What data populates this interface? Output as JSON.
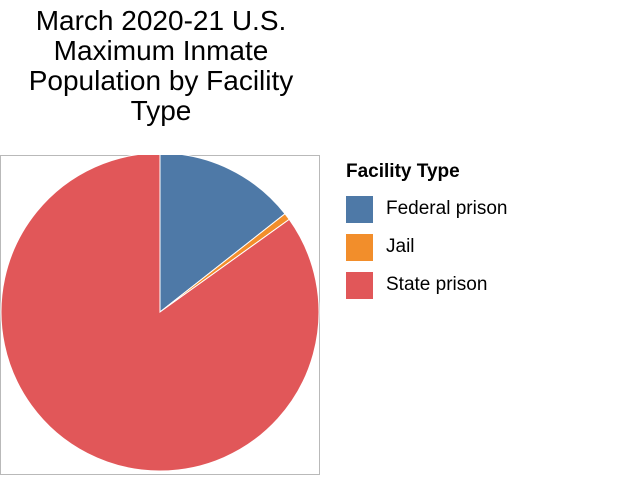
{
  "chart_data": {
    "type": "pie",
    "title": "March 2020-21 U.S. Maximum Inmate Population by Facility Type",
    "title_lines": [
      "March 2020-21 U.S.",
      "Maximum Inmate",
      "Population by Facility",
      "Type"
    ],
    "legend_title": "Facility Type",
    "legend_position": "right",
    "categories": [
      "Federal prison",
      "Jail",
      "State prison"
    ],
    "values": [
      14.4,
      0.7,
      84.9
    ],
    "value_unit": "percent",
    "colors": [
      "#4e79a7",
      "#f28e2b",
      "#e15759"
    ]
  }
}
